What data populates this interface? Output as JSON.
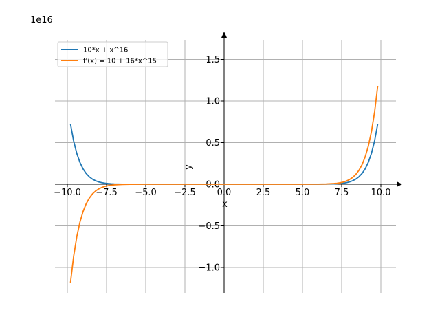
{
  "chart_data": {
    "type": "line",
    "title": "",
    "xlabel": "x",
    "ylabel": "y",
    "offset_text": "1e16",
    "xlim": [
      -10.5,
      11.0
    ],
    "ylim": [
      -1.3,
      1.75
    ],
    "x_ticks": [
      -10.0,
      -7.5,
      -5.0,
      -2.5,
      0.0,
      2.5,
      5.0,
      7.5,
      10.0
    ],
    "x_tick_labels": [
      "−10.0",
      "−7.5",
      "−5.0",
      "−2.5",
      "0.0",
      "2.5",
      "5.0",
      "7.5",
      "10.0"
    ],
    "y_ticks": [
      -1.0,
      -0.5,
      0.0,
      0.5,
      1.0,
      1.5
    ],
    "y_tick_labels": [
      "−1.0",
      "−0.5",
      "0.0",
      "0.5",
      "1.0",
      "1.5"
    ],
    "grid": true,
    "legend_position": "top-left",
    "x": [
      -9.8,
      -9.6,
      -9.4,
      -9.2,
      -9.0,
      -8.8,
      -8.6,
      -8.4,
      -8.2,
      -8.0,
      -7.8,
      -7.6,
      -7.4,
      -7.2,
      -7.0,
      -6.5,
      -6.0,
      -5.0,
      -4.0,
      -2.0,
      0.0,
      2.0,
      4.0,
      5.0,
      6.0,
      6.5,
      7.0,
      7.2,
      7.4,
      7.6,
      7.8,
      8.0,
      8.2,
      8.4,
      8.6,
      8.8,
      9.0,
      9.2,
      9.4,
      9.6,
      9.8
    ],
    "series": [
      {
        "name": "10*x + x^16",
        "color": "#1f77b4",
        "values": [
          0.7237,
          0.5207,
          0.3717,
          0.2634,
          0.1853,
          0.1293,
          0.0896,
          0.0616,
          0.0419,
          0.0281,
          0.0188,
          0.0124,
          0.0081,
          0.0052,
          0.0033,
          0.001,
          0.0003,
          0.0,
          0.0,
          0.0,
          0.0,
          0.0,
          0.0,
          0.0,
          0.0003,
          0.001,
          0.0033,
          0.0052,
          0.0081,
          0.0124,
          0.0188,
          0.0281,
          0.0419,
          0.0616,
          0.0896,
          0.1293,
          0.1853,
          0.2634,
          0.3717,
          0.5207,
          0.7237
        ]
      },
      {
        "name": "f'(x) = 10 + 16*x^15",
        "color": "#ff7f0e",
        "values": [
          -1.1815,
          -0.8678,
          -0.6327,
          -0.458,
          -0.3294,
          -0.2351,
          -0.1667,
          -0.1173,
          -0.0818,
          -0.0563,
          -0.0385,
          -0.026,
          -0.0174,
          -0.0116,
          -0.0076,
          -0.0025,
          -0.0008,
          -0.0,
          -0.0,
          -0.0,
          0.0,
          0.0,
          0.0,
          0.0,
          0.0008,
          0.0025,
          0.0076,
          0.0116,
          0.0174,
          0.026,
          0.0385,
          0.0563,
          0.0818,
          0.1173,
          0.1667,
          0.2351,
          0.3294,
          0.458,
          0.6327,
          0.8678,
          1.1815
        ]
      }
    ]
  }
}
